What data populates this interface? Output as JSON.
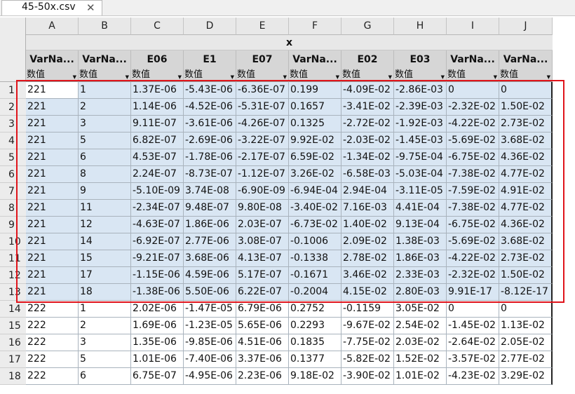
{
  "tab": {
    "filename": "45-50x.csv",
    "close_glyph": "✕"
  },
  "grid": {
    "column_letters": [
      "A",
      "B",
      "C",
      "D",
      "E",
      "F",
      "G",
      "H",
      "I",
      "J"
    ],
    "group_header": "x",
    "column_names": [
      "VarNa...",
      "VarNa...",
      "E06",
      "E1",
      "E07",
      "VarNa...",
      "E02",
      "E03",
      "VarNa...",
      "VarNa..."
    ],
    "column_types": [
      "数值",
      "数值",
      "数值",
      "数值",
      "数值",
      "数值",
      "数值",
      "数值",
      "数值",
      "数值"
    ],
    "rows": [
      {
        "n": "1",
        "cells": [
          "221",
          "1",
          "1.37E-06",
          "-5.43E-06",
          "-6.36E-07",
          "0.199",
          "-4.09E-02",
          "-2.86E-03",
          "0",
          "0"
        ]
      },
      {
        "n": "2",
        "cells": [
          "221",
          "2",
          "1.14E-06",
          "-4.52E-06",
          "-5.31E-07",
          "0.1657",
          "-3.41E-02",
          "-2.39E-03",
          "-2.32E-02",
          "1.50E-02"
        ]
      },
      {
        "n": "3",
        "cells": [
          "221",
          "3",
          "9.11E-07",
          "-3.61E-06",
          "-4.26E-07",
          "0.1325",
          "-2.72E-02",
          "-1.92E-03",
          "-4.22E-02",
          "2.73E-02"
        ]
      },
      {
        "n": "4",
        "cells": [
          "221",
          "5",
          "6.82E-07",
          "-2.69E-06",
          "-3.22E-07",
          "9.92E-02",
          "-2.03E-02",
          "-1.45E-03",
          "-5.69E-02",
          "3.68E-02"
        ]
      },
      {
        "n": "5",
        "cells": [
          "221",
          "6",
          "4.53E-07",
          "-1.78E-06",
          "-2.17E-07",
          "6.59E-02",
          "-1.34E-02",
          "-9.75E-04",
          "-6.75E-02",
          "4.36E-02"
        ]
      },
      {
        "n": "6",
        "cells": [
          "221",
          "8",
          "2.24E-07",
          "-8.73E-07",
          "-1.12E-07",
          "3.26E-02",
          "-6.58E-03",
          "-5.03E-04",
          "-7.38E-02",
          "4.77E-02"
        ]
      },
      {
        "n": "7",
        "cells": [
          "221",
          "9",
          "-5.10E-09",
          "3.74E-08",
          "-6.90E-09",
          "-6.94E-04",
          "2.94E-04",
          "-3.11E-05",
          "-7.59E-02",
          "4.91E-02"
        ]
      },
      {
        "n": "8",
        "cells": [
          "221",
          "11",
          "-2.34E-07",
          "9.48E-07",
          "9.80E-08",
          "-3.40E-02",
          "7.16E-03",
          "4.41E-04",
          "-7.38E-02",
          "4.77E-02"
        ]
      },
      {
        "n": "9",
        "cells": [
          "221",
          "12",
          "-4.63E-07",
          "1.86E-06",
          "2.03E-07",
          "-6.73E-02",
          "1.40E-02",
          "9.13E-04",
          "-6.75E-02",
          "4.36E-02"
        ]
      },
      {
        "n": "10",
        "cells": [
          "221",
          "14",
          "-6.92E-07",
          "2.77E-06",
          "3.08E-07",
          "-0.1006",
          "2.09E-02",
          "1.38E-03",
          "-5.69E-02",
          "3.68E-02"
        ]
      },
      {
        "n": "11",
        "cells": [
          "221",
          "15",
          "-9.21E-07",
          "3.68E-06",
          "4.13E-07",
          "-0.1338",
          "2.78E-02",
          "1.86E-03",
          "-4.22E-02",
          "2.73E-02"
        ]
      },
      {
        "n": "12",
        "cells": [
          "221",
          "17",
          "-1.15E-06",
          "4.59E-06",
          "5.17E-07",
          "-0.1671",
          "3.46E-02",
          "2.33E-03",
          "-2.32E-02",
          "1.50E-02"
        ]
      },
      {
        "n": "13",
        "cells": [
          "221",
          "18",
          "-1.38E-06",
          "5.50E-06",
          "6.22E-07",
          "-0.2004",
          "4.15E-02",
          "2.80E-03",
          "9.91E-17",
          "-8.12E-17"
        ]
      },
      {
        "n": "14",
        "cells": [
          "222",
          "1",
          "2.02E-06",
          "-1.47E-05",
          "6.79E-06",
          "0.2752",
          "-0.1159",
          "3.05E-02",
          "0",
          "0"
        ]
      },
      {
        "n": "15",
        "cells": [
          "222",
          "2",
          "1.69E-06",
          "-1.23E-05",
          "5.65E-06",
          "0.2293",
          "-9.67E-02",
          "2.54E-02",
          "-1.45E-02",
          "1.13E-02"
        ]
      },
      {
        "n": "16",
        "cells": [
          "222",
          "3",
          "1.35E-06",
          "-9.85E-06",
          "4.51E-06",
          "0.1835",
          "-7.75E-02",
          "2.03E-02",
          "-2.64E-02",
          "2.05E-02"
        ]
      },
      {
        "n": "17",
        "cells": [
          "222",
          "5",
          "1.01E-06",
          "-7.40E-06",
          "3.37E-06",
          "0.1377",
          "-5.82E-02",
          "1.52E-02",
          "-3.57E-02",
          "2.77E-02"
        ]
      },
      {
        "n": "18",
        "cells": [
          "222",
          "6",
          "6.75E-07",
          "-4.95E-06",
          "2.23E-06",
          "9.18E-02",
          "-3.90E-02",
          "1.01E-02",
          "-4.23E-02",
          "3.29E-02"
        ]
      }
    ]
  },
  "colors": {
    "selection_fill": "#d9e6f3",
    "highlight_border": "#e0141b"
  }
}
